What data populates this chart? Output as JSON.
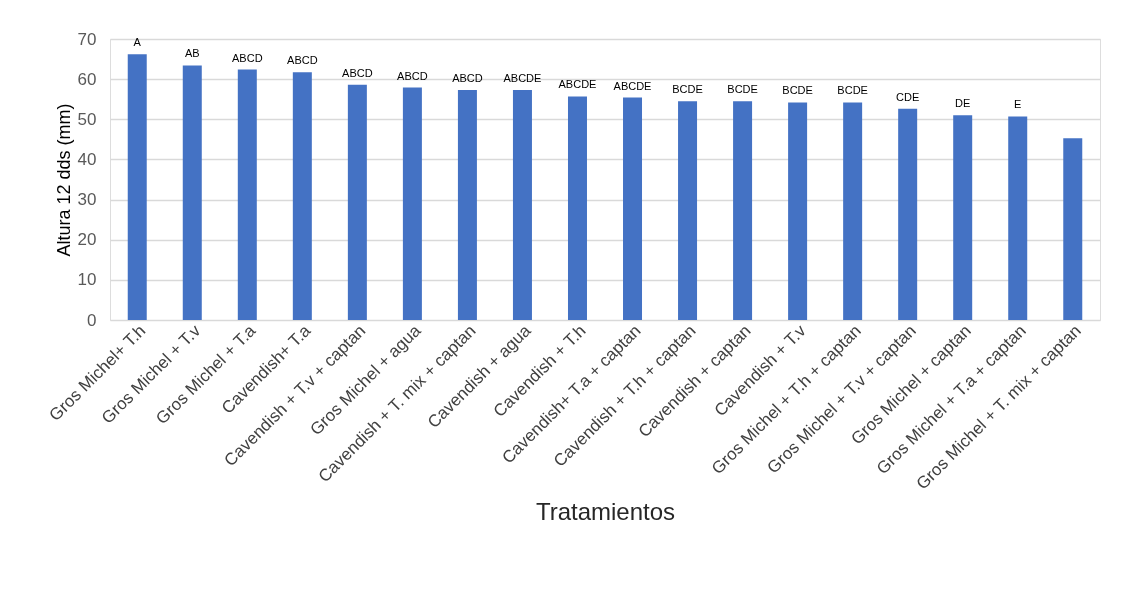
{
  "chart_data": {
    "type": "bar",
    "xlabel": "Tratamientos",
    "ylabel": "Altura 12 dds (mm)",
    "categories": [
      "Gros Michel+ T.h",
      "Gros Michel + T.v",
      "Gros Michel + T.a",
      "Cavendish+ T.a",
      "Cavendish + T.v + captan",
      "Gros Michel + agua",
      "Cavendish + T. mix + captan",
      "Cavendish + agua",
      "Cavendish + T.h",
      "Cavendish+ T.a + captan",
      "Cavendish + T.h + captan",
      "Cavendish + captan",
      "Cavendish + T.v",
      "Gros Michel + T.h + captan",
      "Gros Michel + T.v + captan",
      "Gros Michel + captan",
      "Gros Michel + T.a + captan",
      "Gros Michel + T. mix + captan"
    ],
    "values": [
      66.2,
      63.4,
      62.4,
      61.7,
      58.6,
      57.9,
      57.3,
      57.3,
      55.7,
      55.4,
      54.5,
      54.5,
      54.2,
      54.2,
      52.6,
      51.0,
      50.7,
      45.3
    ],
    "value_labels": [
      "A",
      "AB",
      "ABCD",
      "ABCD",
      "ABCD",
      "ABCD",
      "ABCD",
      "ABCDE",
      "ABCDE",
      "ABCDE",
      "BCDE",
      "BCDE",
      "BCDE",
      "BCDE",
      "CDE",
      "DE",
      "E",
      null
    ],
    "color": "#4472c4",
    "ylim": [
      0,
      70
    ],
    "yticks": [
      0,
      10,
      20,
      30,
      40,
      50,
      60,
      70
    ],
    "grid": "y"
  }
}
